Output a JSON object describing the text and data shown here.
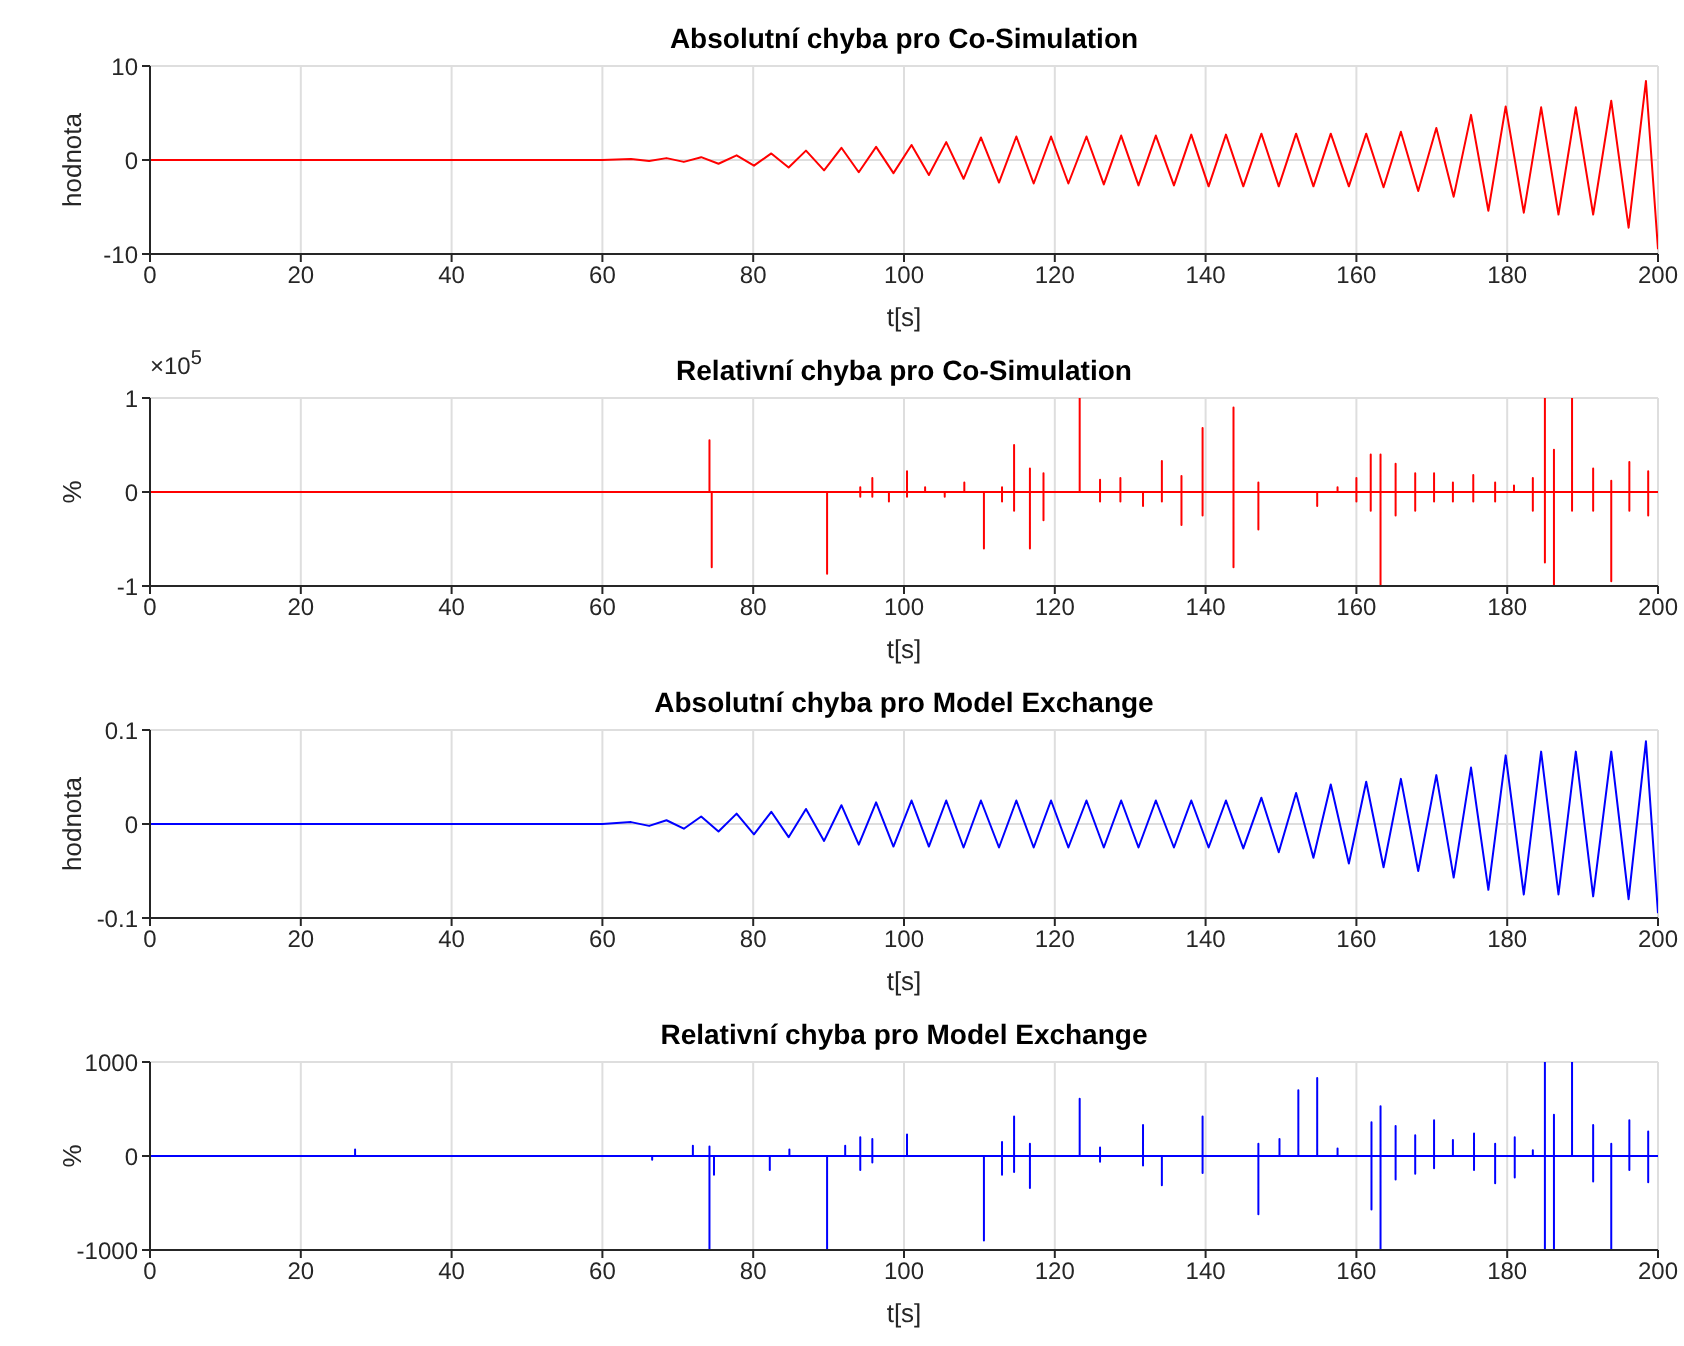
{
  "chart_data": [
    {
      "type": "line",
      "title": "Absolutní chyba pro Co-Simulation",
      "xlabel": "t[s]",
      "ylabel": "hodnota",
      "xlim": [
        0,
        200
      ],
      "xticks": [
        0,
        20,
        40,
        60,
        80,
        100,
        120,
        140,
        160,
        180,
        200
      ],
      "ylim": [
        -10,
        10
      ],
      "yticks": [
        -10,
        0,
        10
      ],
      "grid": true,
      "series": [
        {
          "color": "#ff0000",
          "x": [
            0,
            60,
            63.8,
            66.2,
            68.5,
            70.8,
            73.1,
            75.4,
            77.8,
            80.1,
            82.4,
            84.7,
            87.0,
            89.4,
            91.7,
            94.0,
            96.3,
            98.6,
            101.0,
            103.3,
            105.6,
            107.9,
            110.2,
            112.6,
            114.9,
            117.2,
            119.5,
            121.8,
            124.2,
            126.5,
            128.8,
            131.1,
            133.4,
            135.8,
            138.1,
            140.4,
            142.7,
            145.0,
            147.4,
            149.7,
            152.0,
            154.3,
            156.6,
            159.0,
            161.3,
            163.6,
            165.9,
            168.2,
            170.6,
            172.9,
            175.2,
            177.5,
            179.8,
            182.2,
            184.5,
            186.8,
            189.1,
            191.4,
            193.8,
            196.1,
            198.4,
            200
          ],
          "values": [
            0,
            0,
            0.1,
            -0.1,
            0.2,
            -0.2,
            0.3,
            -0.4,
            0.5,
            -0.6,
            0.7,
            -0.8,
            1.0,
            -1.1,
            1.3,
            -1.3,
            1.4,
            -1.4,
            1.6,
            -1.6,
            1.9,
            -2.0,
            2.4,
            -2.4,
            2.5,
            -2.5,
            2.5,
            -2.5,
            2.5,
            -2.6,
            2.6,
            -2.7,
            2.6,
            -2.7,
            2.7,
            -2.8,
            2.7,
            -2.8,
            2.8,
            -2.8,
            2.8,
            -2.8,
            2.8,
            -2.8,
            2.8,
            -2.9,
            3.0,
            -3.3,
            3.4,
            -3.9,
            4.8,
            -5.4,
            5.7,
            -5.6,
            5.6,
            -5.8,
            5.6,
            -5.8,
            6.3,
            -7.2,
            8.4,
            -9.5
          ]
        }
      ]
    },
    {
      "type": "line",
      "title": "Relativní chyba pro Co-Simulation",
      "xlabel": "t[s]",
      "ylabel": "%",
      "annotations": [
        "×10$^{5}$"
      ],
      "xlim": [
        0,
        200
      ],
      "xticks": [
        0,
        20,
        40,
        60,
        80,
        100,
        120,
        140,
        160,
        180,
        200
      ],
      "ylim": [
        -1,
        1
      ],
      "yticks": [
        -1,
        0,
        1
      ],
      "grid": true,
      "series": [
        {
          "color": "#ff0000",
          "x": [
            0,
            74.2,
            74.2,
            74.2,
            74.5,
            74.5,
            74.5,
            89.8,
            89.8,
            89.8,
            94.2,
            94.2,
            94.2,
            94.2,
            95.8,
            95.8,
            95.8,
            95.8,
            98,
            98,
            98,
            100.4,
            100.4,
            100.4,
            100.4,
            102.8,
            102.8,
            102.8,
            105.4,
            105.4,
            105.4,
            108,
            108,
            108,
            110.6,
            110.6,
            110.6,
            113,
            113,
            113,
            113,
            114.6,
            114.6,
            114.6,
            114.6,
            116.7,
            116.7,
            116.7,
            116.7,
            118.5,
            118.5,
            118.5,
            118.5,
            123.3,
            123.3,
            123.3,
            126,
            126,
            126,
            126,
            128.7,
            128.7,
            128.7,
            128.7,
            131.7,
            131.7,
            131.7,
            134.2,
            134.2,
            134.2,
            134.2,
            136.8,
            136.8,
            136.8,
            136.8,
            139.6,
            139.6,
            139.6,
            139.6,
            143.7,
            143.7,
            143.7,
            143.7,
            147,
            147,
            147,
            147,
            154.8,
            154.8,
            154.8,
            157.5,
            157.5,
            157.5,
            160,
            160,
            160,
            160,
            161.9,
            161.9,
            161.9,
            161.9,
            163.2,
            163.2,
            163.2,
            163.2,
            165.2,
            165.2,
            165.2,
            165.2,
            167.8,
            167.8,
            167.8,
            167.8,
            170.3,
            170.3,
            170.3,
            170.3,
            172.8,
            172.8,
            172.8,
            172.8,
            175.5,
            175.5,
            175.5,
            175.5,
            178.4,
            178.4,
            178.4,
            178.4,
            180.9,
            180.9,
            180.9,
            183.4,
            183.4,
            183.4,
            183.4,
            185,
            185,
            185,
            185,
            186.2,
            186.2,
            186.2,
            186.2,
            188.6,
            188.6,
            188.6,
            188.6,
            191.4,
            191.4,
            191.4,
            191.4,
            193.8,
            193.8,
            193.8,
            193.8,
            196.2,
            196.2,
            196.2,
            196.2,
            198.7,
            198.7,
            198.7,
            198.7,
            200
          ],
          "values": [
            0,
            0,
            0.55,
            0,
            0,
            -0.8,
            0,
            0,
            -0.87,
            0,
            0,
            0.05,
            -0.05,
            0,
            0,
            0.15,
            -0.05,
            0,
            0,
            -0.1,
            0,
            0,
            0.22,
            -0.05,
            0,
            0,
            0.05,
            0,
            0,
            -0.05,
            0,
            0,
            0.1,
            0,
            0,
            -0.6,
            0,
            0,
            0.05,
            -0.1,
            0,
            0,
            0.5,
            -0.2,
            0,
            0,
            0.25,
            -0.6,
            0,
            0,
            0.2,
            -0.3,
            0,
            0,
            1,
            0,
            0,
            0.13,
            -0.1,
            0,
            0,
            0.15,
            -0.1,
            0,
            0,
            -0.15,
            0,
            0,
            0.33,
            -0.1,
            0,
            0,
            0.17,
            -0.35,
            0,
            0,
            0.68,
            -0.25,
            0,
            0,
            0.9,
            -0.8,
            0,
            0,
            0.1,
            -0.4,
            0,
            0,
            -0.15,
            0,
            0,
            0.05,
            0,
            0,
            0.15,
            -0.1,
            0,
            0,
            0.4,
            -0.2,
            0,
            0,
            0.4,
            -1,
            0,
            0,
            0.3,
            -0.25,
            0,
            0,
            0.2,
            -0.2,
            0,
            0,
            0.2,
            -0.1,
            0,
            0,
            0.1,
            -0.1,
            0,
            0,
            0.18,
            -0.1,
            0,
            0,
            0.1,
            -0.1,
            0,
            0,
            0.07,
            0,
            0,
            0.15,
            -0.2,
            0,
            0,
            1,
            -0.75,
            0,
            0,
            0.45,
            -1,
            0,
            0,
            1,
            -0.2,
            0,
            0,
            0.25,
            -0.2,
            0,
            0,
            0.12,
            -0.95,
            0,
            0,
            0.32,
            -0.2,
            0,
            0,
            0.22,
            -0.25,
            0,
            0
          ]
        }
      ]
    },
    {
      "type": "line",
      "title": "Absolutní chyba pro Model Exchange",
      "xlabel": "t[s]",
      "ylabel": "hodnota",
      "xlim": [
        0,
        200
      ],
      "xticks": [
        0,
        20,
        40,
        60,
        80,
        100,
        120,
        140,
        160,
        180,
        200
      ],
      "ylim": [
        -0.1,
        0.1
      ],
      "yticks": [
        -0.1,
        0,
        0.1
      ],
      "grid": true,
      "series": [
        {
          "color": "#0000ff",
          "x": [
            0,
            60,
            63.8,
            66.2,
            68.5,
            70.8,
            73.1,
            75.4,
            77.8,
            80.1,
            82.4,
            84.7,
            87.0,
            89.4,
            91.7,
            94.0,
            96.3,
            98.6,
            101.0,
            103.3,
            105.6,
            107.9,
            110.2,
            112.6,
            114.9,
            117.2,
            119.5,
            121.8,
            124.2,
            126.5,
            128.8,
            131.1,
            133.4,
            135.8,
            138.1,
            140.4,
            142.7,
            145.0,
            147.4,
            149.7,
            152.0,
            154.3,
            156.6,
            159.0,
            161.3,
            163.6,
            165.9,
            168.2,
            170.6,
            172.9,
            175.2,
            177.5,
            179.8,
            182.2,
            184.5,
            186.8,
            189.1,
            191.4,
            193.8,
            196.1,
            198.4,
            200
          ],
          "values": [
            0,
            0,
            0.002,
            -0.002,
            0.004,
            -0.005,
            0.008,
            -0.008,
            0.011,
            -0.011,
            0.013,
            -0.014,
            0.016,
            -0.018,
            0.02,
            -0.022,
            0.023,
            -0.024,
            0.025,
            -0.024,
            0.025,
            -0.025,
            0.025,
            -0.025,
            0.025,
            -0.025,
            0.025,
            -0.025,
            0.025,
            -0.025,
            0.025,
            -0.025,
            0.025,
            -0.025,
            0.025,
            -0.025,
            0.025,
            -0.026,
            0.028,
            -0.03,
            0.033,
            -0.036,
            0.042,
            -0.042,
            0.045,
            -0.046,
            0.048,
            -0.05,
            0.052,
            -0.057,
            0.06,
            -0.07,
            0.073,
            -0.075,
            0.077,
            -0.075,
            0.077,
            -0.077,
            0.077,
            -0.08,
            0.088,
            -0.095
          ]
        }
      ]
    },
    {
      "type": "line",
      "title": "Relativní chyba pro Model Exchange",
      "xlabel": "t[s]",
      "ylabel": "%",
      "xlim": [
        0,
        200
      ],
      "xticks": [
        0,
        20,
        40,
        60,
        80,
        100,
        120,
        140,
        160,
        180,
        200
      ],
      "ylim": [
        -1000,
        1000
      ],
      "yticks": [
        -1000,
        0,
        1000
      ],
      "grid": true,
      "series": [
        {
          "color": "#0000ff",
          "x": [
            0,
            27.2,
            27.2,
            27.2,
            66.6,
            66.6,
            66.6,
            72,
            72,
            72,
            74.2,
            74.2,
            74.2,
            74.2,
            74.8,
            74.8,
            74.8,
            82.2,
            82.2,
            82.2,
            84.8,
            84.8,
            84.8,
            89.8,
            89.8,
            89.8,
            92.2,
            92.2,
            92.2,
            94.2,
            94.2,
            94.2,
            94.2,
            95.8,
            95.8,
            95.8,
            95.8,
            100.4,
            100.4,
            100.4,
            110.6,
            110.6,
            110.6,
            113,
            113,
            113,
            113,
            114.6,
            114.6,
            114.6,
            114.6,
            116.7,
            116.7,
            116.7,
            116.7,
            123.3,
            123.3,
            123.3,
            126,
            126,
            126,
            126,
            131.7,
            131.7,
            131.7,
            131.7,
            134.2,
            134.2,
            134.2,
            139.6,
            139.6,
            139.6,
            139.6,
            147,
            147,
            147,
            147,
            149.8,
            149.8,
            149.8,
            152.3,
            152.3,
            152.3,
            154.8,
            154.8,
            154.8,
            157.5,
            157.5,
            157.5,
            162,
            162,
            162,
            162,
            163.2,
            163.2,
            163.2,
            163.2,
            165.2,
            165.2,
            165.2,
            165.2,
            167.8,
            167.8,
            167.8,
            167.8,
            170.3,
            170.3,
            170.3,
            170.3,
            172.8,
            172.8,
            172.8,
            175.6,
            175.6,
            175.6,
            175.6,
            178.4,
            178.4,
            178.4,
            178.4,
            181,
            181,
            181,
            181,
            183.4,
            183.4,
            183.4,
            185,
            185,
            185,
            185,
            186.2,
            186.2,
            186.2,
            186.2,
            188.6,
            188.6,
            188.6,
            191.4,
            191.4,
            191.4,
            191.4,
            193.8,
            193.8,
            193.8,
            193.8,
            196.2,
            196.2,
            196.2,
            196.2,
            198.7,
            198.7,
            198.7,
            198.7,
            200
          ],
          "values": [
            0,
            0,
            70,
            0,
            0,
            -40,
            0,
            0,
            110,
            0,
            0,
            100,
            -1000,
            0,
            0,
            -200,
            0,
            0,
            -150,
            0,
            0,
            70,
            0,
            0,
            -1000,
            0,
            0,
            110,
            0,
            0,
            200,
            -150,
            0,
            0,
            180,
            -70,
            0,
            0,
            230,
            0,
            0,
            -900,
            0,
            0,
            150,
            -200,
            0,
            0,
            420,
            -170,
            0,
            0,
            130,
            -340,
            0,
            0,
            610,
            0,
            0,
            90,
            -60,
            0,
            0,
            330,
            -100,
            0,
            0,
            -310,
            0,
            0,
            420,
            -180,
            0,
            0,
            130,
            -620,
            0,
            0,
            180,
            0,
            0,
            700,
            0,
            0,
            830,
            0,
            0,
            80,
            0,
            0,
            360,
            -570,
            0,
            0,
            530,
            -1000,
            0,
            0,
            320,
            -250,
            0,
            0,
            220,
            -190,
            0,
            0,
            380,
            -130,
            0,
            0,
            170,
            0,
            0,
            240,
            -150,
            0,
            0,
            130,
            -290,
            0,
            0,
            200,
            -230,
            0,
            0,
            60,
            0,
            0,
            1000,
            -1000,
            0,
            0,
            440,
            -1000,
            0,
            0,
            1000,
            0,
            0,
            330,
            -270,
            0,
            0,
            130,
            -1000,
            0,
            0,
            380,
            -150,
            0,
            0,
            260,
            -280,
            0,
            0
          ]
        }
      ]
    }
  ]
}
